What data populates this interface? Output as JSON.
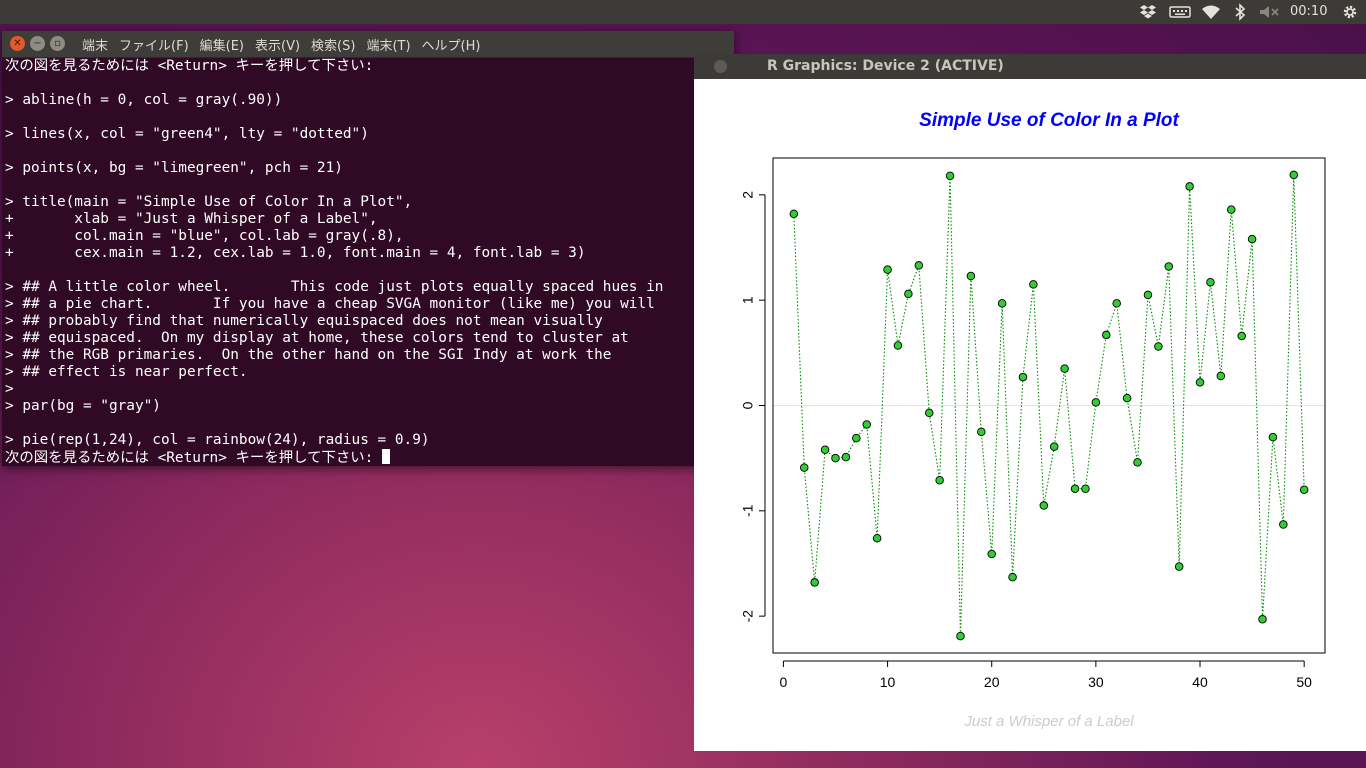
{
  "top_panel": {
    "icons": [
      "dropbox-icon",
      "keyboard-icon",
      "wifi-icon",
      "bluetooth-icon",
      "volume-muted-icon",
      "settings-gear-icon"
    ],
    "clock": "00:10"
  },
  "terminal": {
    "menu": [
      "端末",
      "ファイル(F)",
      "編集(E)",
      "表示(V)",
      "検索(S)",
      "端末(T)",
      "ヘルプ(H)"
    ],
    "lines": [
      "次の図を見るためには <Return> キーを押して下さい:",
      "",
      "> abline(h = 0, col = gray(.90))",
      "",
      "> lines(x, col = \"green4\", lty = \"dotted\")",
      "",
      "> points(x, bg = \"limegreen\", pch = 21)",
      "",
      "> title(main = \"Simple Use of Color In a Plot\",",
      "+       xlab = \"Just a Whisper of a Label\",",
      "+       col.main = \"blue\", col.lab = gray(.8),",
      "+       cex.main = 1.2, cex.lab = 1.0, font.main = 4, font.lab = 3)",
      "",
      "> ## A little color wheel.       This code just plots equally spaced hues in",
      "> ## a pie chart.       If you have a cheap SVGA monitor (like me) you will",
      "> ## probably find that numerically equispaced does not mean visually",
      "> ## equispaced.  On my display at home, these colors tend to cluster at",
      "> ## the RGB primaries.  On the other hand on the SGI Indy at work the",
      "> ## effect is near perfect.",
      ">",
      "> par(bg = \"gray\")",
      "",
      "> pie(rep(1,24), col = rainbow(24), radius = 0.9)"
    ],
    "prompt_line": "次の図を見るためには <Return> キーを押して下さい: "
  },
  "rwindow": {
    "title": "R Graphics: Device 2 (ACTIVE)"
  },
  "chart_data": {
    "type": "scatter",
    "title": "Simple Use of Color In a Plot",
    "xlabel": "Just a Whisper of a Label",
    "ylabel": "",
    "x_ticks": [
      "0",
      "10",
      "20",
      "30",
      "40",
      "50"
    ],
    "y_ticks": [
      "-2",
      "-1",
      "0",
      "1",
      "2"
    ],
    "xlim": [
      -1,
      52
    ],
    "ylim": [
      -2.35,
      2.35
    ],
    "hline_y": 0,
    "grid": false,
    "line_style": "dotted",
    "colors": {
      "title": "#0000ff",
      "line": "#008b00",
      "point_fill": "#32cd32",
      "xlabel": "#cccccc",
      "hline": "#e5e5e5"
    },
    "x": [
      1,
      2,
      3,
      4,
      5,
      6,
      7,
      8,
      9,
      10,
      11,
      12,
      13,
      14,
      15,
      16,
      17,
      18,
      19,
      20,
      21,
      22,
      23,
      24,
      25,
      26,
      27,
      28,
      29,
      30,
      31,
      32,
      33,
      34,
      35,
      36,
      37,
      38,
      39,
      40,
      41,
      42,
      43,
      44,
      45,
      46,
      47,
      48,
      49,
      50
    ],
    "y": [
      1.82,
      -0.59,
      -1.68,
      -0.42,
      -0.5,
      -0.49,
      -0.31,
      -0.18,
      -1.26,
      1.29,
      0.57,
      1.06,
      1.33,
      -0.07,
      -0.71,
      2.18,
      -2.19,
      1.23,
      -0.25,
      -1.41,
      0.97,
      -1.63,
      0.27,
      1.15,
      -0.95,
      -0.39,
      0.35,
      -0.79,
      -0.79,
      0.03,
      0.67,
      0.97,
      0.07,
      -0.54,
      1.05,
      0.56,
      1.32,
      -1.53,
      2.08,
      0.22,
      1.17,
      0.28,
      1.86,
      0.66,
      1.58,
      -2.03,
      -0.3,
      -1.13,
      2.19,
      -0.8
    ]
  }
}
